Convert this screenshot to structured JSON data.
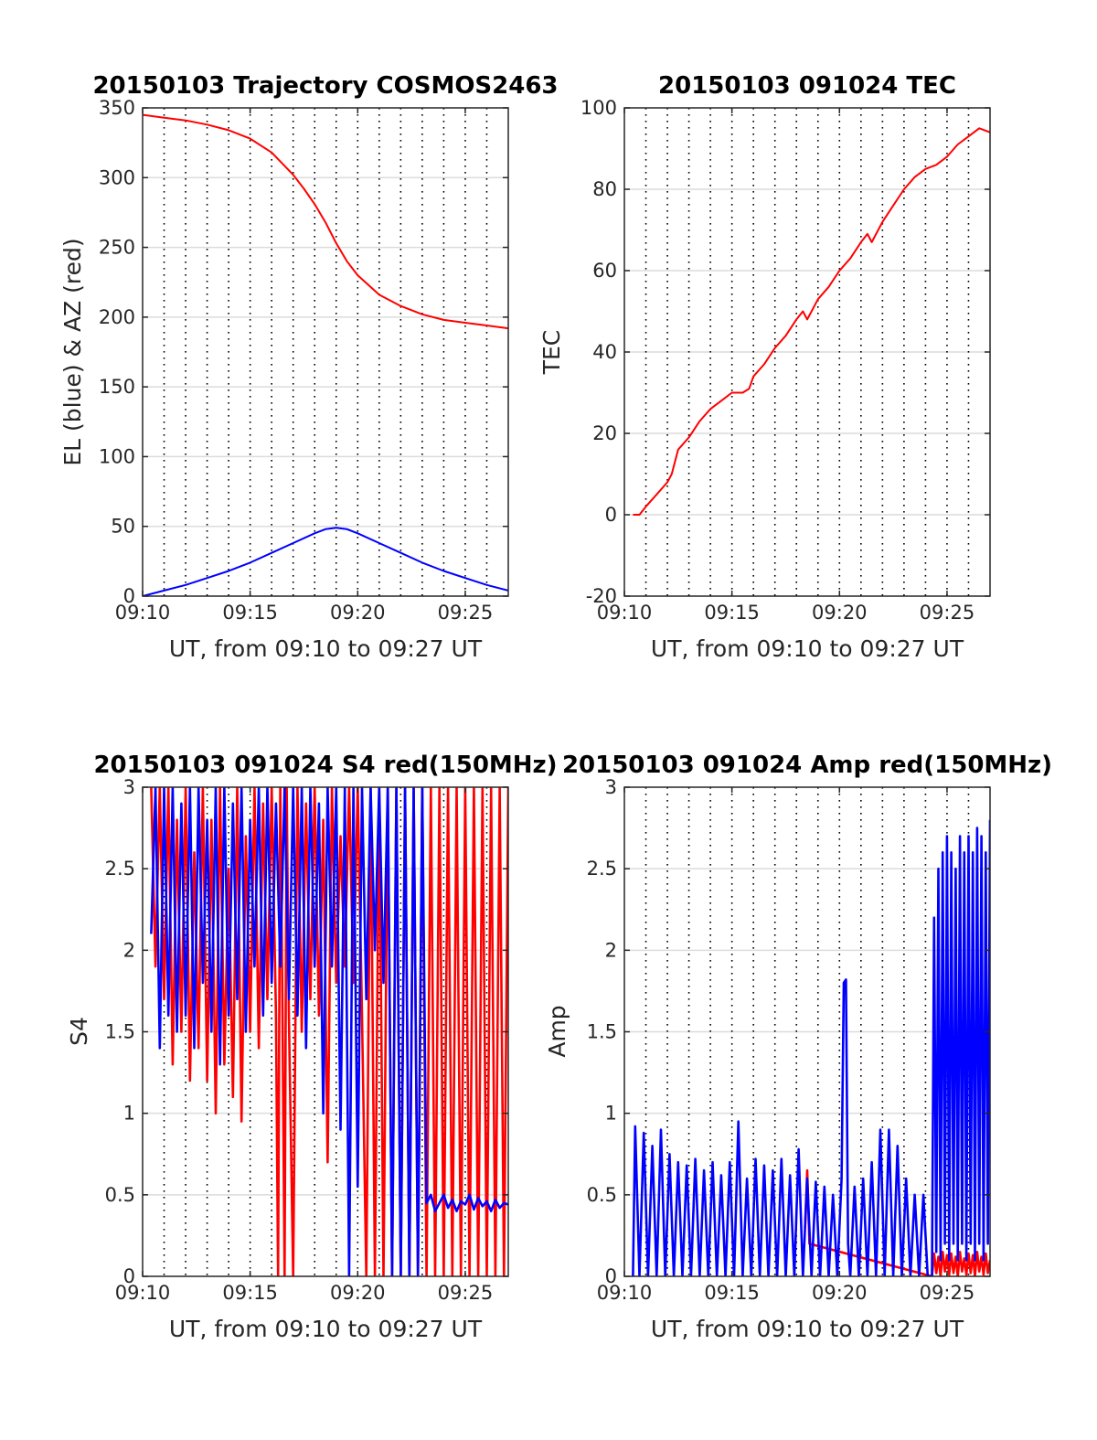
{
  "figure": {
    "background": "#ffffff"
  },
  "chart_data": [
    {
      "type": "line",
      "title": "20150103 Trajectory COSMOS2463",
      "xlabel": "UT, from 09:10 to 09:27 UT",
      "ylabel": "EL (blue) & AZ (red)",
      "xlim": [
        0,
        17
      ],
      "ylim": [
        0,
        350
      ],
      "x_ticks": [
        0,
        5,
        10,
        15
      ],
      "x_tick_labels": [
        "09:10",
        "09:15",
        "09:20",
        "09:25"
      ],
      "y_ticks": [
        0,
        50,
        100,
        150,
        200,
        250,
        300,
        350
      ],
      "y_tick_labels": [
        "0",
        "50",
        "100",
        "150",
        "200",
        "250",
        "300",
        "350"
      ],
      "grid": "dotted vertical lines every minute, horizontal lines at y ticks",
      "series": [
        {
          "color": "#ff0000",
          "x": [
            0,
            1,
            2,
            3,
            4,
            5,
            6,
            7,
            7.5,
            8,
            8.5,
            9,
            9.5,
            10,
            10.5,
            11,
            12,
            13,
            14,
            15,
            16,
            17
          ],
          "y": [
            345,
            343,
            341,
            338,
            334,
            328,
            318,
            302,
            292,
            281,
            268,
            253,
            240,
            230,
            223,
            216,
            208,
            202,
            198,
            196,
            194,
            192
          ]
        },
        {
          "color": "#0000ff",
          "x": [
            0,
            1,
            2,
            3,
            4,
            5,
            6,
            7,
            8,
            8.5,
            9,
            9.5,
            10,
            11,
            12,
            13,
            14,
            15,
            16,
            17
          ],
          "y": [
            0,
            4,
            8,
            13,
            18,
            24,
            31,
            38,
            45,
            48,
            49,
            48,
            45,
            38,
            31,
            24,
            18,
            13,
            8,
            4
          ]
        }
      ]
    },
    {
      "type": "line",
      "title": "20150103 091024 TEC",
      "xlabel": "UT, from 09:10 to 09:27 UT",
      "ylabel": "TEC",
      "xlim": [
        0,
        17
      ],
      "ylim": [
        -20,
        100
      ],
      "x_ticks": [
        0,
        5,
        10,
        15
      ],
      "x_tick_labels": [
        "09:10",
        "09:15",
        "09:20",
        "09:25"
      ],
      "y_ticks": [
        -20,
        0,
        20,
        40,
        60,
        80,
        100
      ],
      "y_tick_labels": [
        "-20",
        "0",
        "20",
        "40",
        "60",
        "80",
        "100"
      ],
      "series": [
        {
          "color": "#ff0000",
          "x": [
            0.4,
            0.7,
            1,
            1.5,
            2,
            2.2,
            2.5,
            3,
            3.5,
            4,
            4.5,
            5,
            5.5,
            5.8,
            6,
            6.5,
            7,
            7.5,
            8,
            8.3,
            8.5,
            9,
            9.5,
            10,
            10.5,
            11,
            11.3,
            11.5,
            12,
            12.5,
            13,
            13.5,
            14,
            14.5,
            15,
            15.5,
            16,
            16.5,
            17
          ],
          "y": [
            0,
            0,
            2,
            5,
            8,
            10,
            16,
            19,
            23,
            26,
            28,
            30,
            30,
            31,
            34,
            37,
            41,
            44,
            48,
            50,
            48,
            53,
            56,
            60,
            63,
            67,
            69,
            67,
            72,
            76,
            80,
            83,
            85,
            86,
            88,
            91,
            93,
            95,
            94
          ]
        }
      ]
    },
    {
      "type": "line",
      "title": "20150103 091024 S4 red(150MHz)",
      "xlabel": "UT, from 09:10 to 09:27 UT",
      "ylabel": "S4",
      "xlim": [
        0,
        17
      ],
      "ylim": [
        0,
        3
      ],
      "x_ticks": [
        0,
        5,
        10,
        15
      ],
      "x_tick_labels": [
        "09:10",
        "09:15",
        "09:20",
        "09:25"
      ],
      "y_ticks": [
        0,
        0.5,
        1,
        1.5,
        2,
        2.5,
        3
      ],
      "y_tick_labels": [
        "0",
        "0.5",
        "1",
        "1.5",
        "2",
        "2.5",
        "3"
      ],
      "series": [
        {
          "color": "#ff0000",
          "x": [
            0.4,
            0.6,
            0.8,
            1.0,
            1.2,
            1.4,
            1.6,
            1.8,
            2.0,
            2.2,
            2.4,
            2.6,
            2.8,
            3.0,
            3.2,
            3.4,
            3.6,
            3.8,
            4.0,
            4.2,
            4.4,
            4.6,
            4.8,
            5.0,
            5.2,
            5.4,
            5.6,
            5.8,
            6.0,
            6.2,
            6.3,
            6.4,
            6.5,
            6.6,
            6.7,
            6.8,
            7.0,
            7.2,
            7.4,
            7.6,
            7.8,
            8.0,
            8.2,
            8.4,
            8.6,
            8.8,
            9.0,
            9.2,
            9.4,
            9.6,
            9.8,
            10.0,
            10.2,
            10.4,
            10.6,
            10.8,
            11.0,
            11.2,
            11.4,
            11.6,
            11.8,
            12.0,
            12.2,
            12.4,
            12.6,
            12.8,
            13.0,
            13.2,
            13.4,
            13.6,
            13.8,
            14.0,
            14.2,
            14.4,
            14.6,
            14.8,
            15.0,
            15.2,
            15.4,
            15.6,
            15.8,
            16.0,
            16.2,
            16.4,
            16.6,
            16.8,
            17.0
          ],
          "y": [
            3,
            1.9,
            3,
            1.7,
            3,
            1.3,
            2.8,
            1.5,
            3,
            1.2,
            2.6,
            1.4,
            3,
            1.2,
            2.8,
            1.0,
            3,
            1.3,
            2.5,
            1.1,
            3,
            0.95,
            2.7,
            1.5,
            3,
            1.4,
            2.9,
            1.7,
            3,
            1.6,
            0,
            3,
            1.7,
            0,
            3,
            1.6,
            0,
            3,
            1.5,
            2.9,
            1.7,
            3,
            1.6,
            2.8,
            0.7,
            3,
            1.8,
            2.7,
            1.9,
            3,
            1.8,
            3,
            1.6,
            0,
            3,
            0,
            3,
            0,
            3,
            0,
            3,
            0,
            3,
            0,
            3,
            0,
            3,
            0,
            3,
            0,
            3,
            0,
            3,
            0,
            3,
            0,
            3,
            0,
            3,
            0,
            3,
            0,
            3,
            0,
            3,
            0,
            3
          ]
        },
        {
          "color": "#0000ff",
          "x": [
            0.4,
            0.6,
            0.8,
            1.0,
            1.2,
            1.4,
            1.6,
            1.8,
            2.0,
            2.2,
            2.4,
            2.6,
            2.8,
            3.0,
            3.2,
            3.4,
            3.6,
            3.8,
            4.0,
            4.2,
            4.4,
            4.6,
            4.8,
            5.0,
            5.2,
            5.4,
            5.6,
            5.8,
            6.0,
            6.2,
            6.4,
            6.6,
            6.8,
            7.0,
            7.2,
            7.4,
            7.6,
            7.8,
            8.0,
            8.2,
            8.4,
            8.6,
            8.8,
            9.0,
            9.2,
            9.4,
            9.6,
            9.8,
            10.0,
            10.2,
            10.4,
            10.6,
            10.8,
            11.0,
            11.2,
            11.4,
            11.6,
            11.8,
            12.0,
            12.2,
            12.4,
            12.6,
            12.8,
            13.0,
            13.2,
            13.4,
            13.6,
            13.8,
            14.0,
            14.2,
            14.4,
            14.6,
            14.8,
            15.0,
            15.2,
            15.4,
            15.6,
            15.8,
            16.0,
            16.2,
            16.4,
            16.6,
            16.8,
            17.0
          ],
          "y": [
            2.1,
            3,
            1.4,
            3,
            1.6,
            3,
            1.5,
            2.9,
            1.6,
            3,
            1.4,
            3,
            1.8,
            2.8,
            1.5,
            3,
            1.3,
            3,
            1.6,
            2.9,
            1.7,
            3,
            1.5,
            2.8,
            1.9,
            3,
            1.6,
            3,
            1.8,
            2.9,
            1.9,
            3,
            1.7,
            3,
            1.6,
            3,
            1.4,
            3,
            1.9,
            2.9,
            1.0,
            3,
            1.9,
            3,
            0.9,
            3,
            0,
            3,
            0.55,
            3,
            1.7,
            3,
            2.0,
            3,
            1.8,
            3,
            0,
            3,
            0,
            3,
            0,
            3,
            0,
            3,
            0.45,
            0.5,
            0.4,
            0.45,
            0.5,
            0.42,
            0.47,
            0.4,
            0.46,
            0.44,
            0.5,
            0.41,
            0.48,
            0.43,
            0.46,
            0.4,
            0.47,
            0.42,
            0.45,
            0.44
          ]
        }
      ]
    },
    {
      "type": "line",
      "title": "20150103 091024 Amp red(150MHz)",
      "xlabel": "UT, from 09:10 to 09:27 UT",
      "ylabel": "Amp",
      "xlim": [
        0,
        17
      ],
      "ylim": [
        0,
        3
      ],
      "x_ticks": [
        0,
        5,
        10,
        15
      ],
      "x_tick_labels": [
        "09:10",
        "09:15",
        "09:20",
        "09:25"
      ],
      "y_ticks": [
        0,
        0.5,
        1,
        1.5,
        2,
        2.5,
        3
      ],
      "y_tick_labels": [
        "0",
        "0.5",
        "1",
        "1.5",
        "2",
        "2.5",
        "3"
      ],
      "series": [
        {
          "color": "#ff0000",
          "x": [
            8.4,
            8.5,
            8.6,
            14.3,
            14.4,
            14.5,
            14.6,
            14.7,
            14.8,
            14.9,
            15.0,
            15.1,
            15.2,
            15.3,
            15.4,
            15.5,
            15.6,
            15.7,
            15.8,
            15.9,
            16.0,
            16.1,
            16.2,
            16.3,
            16.4,
            16.5,
            16.6,
            16.7,
            16.8,
            16.9,
            17.0
          ],
          "y": [
            0.3,
            0.65,
            0.2,
            0.0,
            0.14,
            0.02,
            0.12,
            0.0,
            0.15,
            0.03,
            0.13,
            0.01,
            0.14,
            0.02,
            0.12,
            0.0,
            0.15,
            0.03,
            0.11,
            0.01,
            0.14,
            0.02,
            0.13,
            0.0,
            0.15,
            0.03,
            0.12,
            0.01,
            0.14,
            0.02,
            0.1
          ]
        },
        {
          "color": "#0000ff",
          "x": [
            0.4,
            0.5,
            0.7,
            0.9,
            1.1,
            1.3,
            1.5,
            1.7,
            1.9,
            2.1,
            2.3,
            2.5,
            2.7,
            2.9,
            3.1,
            3.3,
            3.5,
            3.7,
            3.9,
            4.1,
            4.3,
            4.5,
            4.7,
            4.9,
            5.1,
            5.3,
            5.5,
            5.7,
            5.9,
            6.1,
            6.3,
            6.5,
            6.7,
            6.9,
            7.1,
            7.3,
            7.5,
            7.7,
            7.9,
            8.1,
            8.3,
            8.5,
            8.7,
            8.9,
            9.1,
            9.3,
            9.5,
            9.7,
            9.9,
            10.1,
            10.2,
            10.3,
            10.4,
            10.5,
            10.7,
            10.9,
            11.1,
            11.3,
            11.5,
            11.7,
            11.9,
            12.1,
            12.3,
            12.5,
            12.7,
            12.9,
            13.1,
            13.3,
            13.5,
            13.7,
            13.9,
            14.1,
            14.3,
            14.4,
            14.5,
            14.6,
            14.7,
            14.8,
            14.9,
            15.0,
            15.1,
            15.2,
            15.3,
            15.4,
            15.5,
            15.6,
            15.7,
            15.8,
            15.9,
            16.0,
            16.1,
            16.2,
            16.3,
            16.4,
            16.5,
            16.6,
            16.7,
            16.8,
            16.9,
            17.0
          ],
          "y": [
            0.0,
            0.92,
            0.0,
            0.88,
            0.0,
            0.8,
            0.0,
            0.9,
            0.0,
            0.75,
            0.0,
            0.7,
            0.0,
            0.68,
            0.0,
            0.72,
            0.0,
            0.65,
            0.0,
            0.7,
            0.0,
            0.62,
            0.0,
            0.7,
            0.0,
            0.95,
            0.0,
            0.6,
            0.0,
            0.72,
            0.0,
            0.68,
            0.0,
            0.65,
            0.0,
            0.72,
            0.0,
            0.62,
            0.0,
            0.78,
            0.0,
            0.6,
            0.0,
            0.58,
            0.0,
            0.55,
            0.0,
            0.5,
            0.0,
            0.6,
            1.8,
            1.82,
            0.2,
            0.0,
            0.55,
            0.0,
            0.6,
            0.0,
            0.7,
            0.0,
            0.9,
            0.0,
            0.9,
            0.0,
            0.8,
            0.0,
            0.6,
            0.0,
            0.5,
            0.0,
            0.5,
            0.0,
            0.0,
            2.2,
            0.15,
            2.5,
            0.1,
            2.6,
            0.2,
            2.7,
            0.1,
            2.6,
            0.2,
            2.5,
            0.1,
            2.7,
            0.2,
            2.6,
            0.1,
            2.7,
            0.2,
            2.6,
            0.1,
            2.75,
            0.2,
            2.7,
            0.1,
            2.6,
            0.2,
            2.8
          ]
        }
      ]
    }
  ]
}
